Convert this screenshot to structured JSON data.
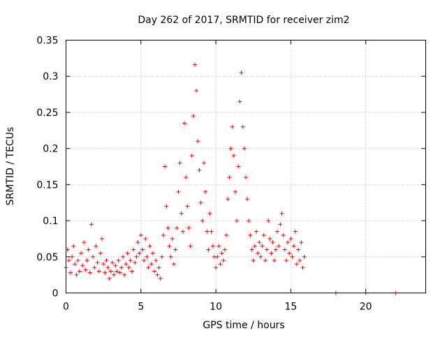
{
  "chart_data": {
    "type": "scatter",
    "title": "Day 262 of 2017, SRMTID for receiver zim2",
    "xlabel": "GPS time / hours",
    "ylabel": "SRMTID / TECUs",
    "xlim": [
      0,
      24
    ],
    "ylim": [
      0,
      0.35
    ],
    "xticks": [
      0,
      5,
      10,
      15,
      20
    ],
    "yticks": [
      0,
      0.05,
      0.1,
      0.15,
      0.2,
      0.25,
      0.3,
      0.35
    ],
    "xtick_labels": [
      "0",
      "5",
      "10",
      "15",
      "20"
    ],
    "ytick_labels": [
      "0",
      "0.05",
      "0.1",
      "0.15",
      "0.2",
      "0.25",
      "0.3",
      "0.35"
    ],
    "grid": true,
    "marker": "plus",
    "color": "#ff0000",
    "series": [
      {
        "name": "SRMTID",
        "points": [
          [
            0.0,
            0.035
          ],
          [
            0.1,
            0.06
          ],
          [
            0.2,
            0.045
          ],
          [
            0.3,
            0.028
          ],
          [
            0.4,
            0.05
          ],
          [
            0.5,
            0.065
          ],
          [
            0.6,
            0.04
          ],
          [
            0.7,
            0.025
          ],
          [
            0.8,
            0.045
          ],
          [
            0.9,
            0.03
          ],
          [
            1.0,
            0.055
          ],
          [
            1.1,
            0.038
          ],
          [
            1.2,
            0.07
          ],
          [
            1.3,
            0.032
          ],
          [
            1.4,
            0.045
          ],
          [
            1.5,
            0.06
          ],
          [
            1.6,
            0.028
          ],
          [
            1.7,
            0.095
          ],
          [
            1.8,
            0.05
          ],
          [
            1.9,
            0.035
          ],
          [
            2.0,
            0.065
          ],
          [
            2.1,
            0.042
          ],
          [
            2.2,
            0.03
          ],
          [
            2.3,
            0.055
          ],
          [
            2.4,
            0.075
          ],
          [
            2.5,
            0.04
          ],
          [
            2.6,
            0.028
          ],
          [
            2.7,
            0.045
          ],
          [
            2.8,
            0.035
          ],
          [
            2.9,
            0.02
          ],
          [
            3.0,
            0.03
          ],
          [
            3.1,
            0.042
          ],
          [
            3.2,
            0.025
          ],
          [
            3.3,
            0.038
          ],
          [
            3.4,
            0.03
          ],
          [
            3.5,
            0.045
          ],
          [
            3.6,
            0.028
          ],
          [
            3.7,
            0.035
          ],
          [
            3.8,
            0.05
          ],
          [
            3.9,
            0.025
          ],
          [
            4.0,
            0.04
          ],
          [
            4.1,
            0.055
          ],
          [
            4.2,
            0.035
          ],
          [
            4.3,
            0.045
          ],
          [
            4.4,
            0.03
          ],
          [
            4.5,
            0.06
          ],
          [
            4.6,
            0.042
          ],
          [
            4.7,
            0.05
          ],
          [
            4.8,
            0.07
          ],
          [
            4.9,
            0.055
          ],
          [
            5.0,
            0.08
          ],
          [
            5.1,
            0.06
          ],
          [
            5.2,
            0.045
          ],
          [
            5.3,
            0.075
          ],
          [
            5.4,
            0.05
          ],
          [
            5.5,
            0.035
          ],
          [
            5.6,
            0.065
          ],
          [
            5.7,
            0.04
          ],
          [
            5.8,
            0.055
          ],
          [
            5.9,
            0.03
          ],
          [
            6.0,
            0.045
          ],
          [
            6.1,
            0.025
          ],
          [
            6.2,
            0.035
          ],
          [
            6.3,
            0.02
          ],
          [
            6.4,
            0.05
          ],
          [
            6.5,
            0.08
          ],
          [
            6.6,
            0.175
          ],
          [
            6.7,
            0.12
          ],
          [
            6.8,
            0.09
          ],
          [
            6.9,
            0.065
          ],
          [
            7.0,
            0.05
          ],
          [
            7.1,
            0.075
          ],
          [
            7.2,
            0.04
          ],
          [
            7.3,
            0.06
          ],
          [
            7.4,
            0.09
          ],
          [
            7.5,
            0.14
          ],
          [
            7.6,
            0.18
          ],
          [
            7.7,
            0.11
          ],
          [
            7.8,
            0.085
          ],
          [
            7.9,
            0.235
          ],
          [
            8.0,
            0.16
          ],
          [
            8.1,
            0.12
          ],
          [
            8.2,
            0.09
          ],
          [
            8.3,
            0.065
          ],
          [
            8.4,
            0.19
          ],
          [
            8.5,
            0.245
          ],
          [
            8.6,
            0.316
          ],
          [
            8.7,
            0.28
          ],
          [
            8.8,
            0.21
          ],
          [
            8.9,
            0.17
          ],
          [
            9.0,
            0.125
          ],
          [
            9.1,
            0.1
          ],
          [
            9.2,
            0.18
          ],
          [
            9.3,
            0.14
          ],
          [
            9.4,
            0.085
          ],
          [
            9.5,
            0.06
          ],
          [
            9.6,
            0.11
          ],
          [
            9.7,
            0.085
          ],
          [
            9.8,
            0.065
          ],
          [
            9.9,
            0.05
          ],
          [
            10.0,
            0.035
          ],
          [
            10.1,
            0.05
          ],
          [
            10.2,
            0.065
          ],
          [
            10.3,
            0.04
          ],
          [
            10.4,
            0.055
          ],
          [
            10.5,
            0.045
          ],
          [
            10.6,
            0.06
          ],
          [
            10.7,
            0.08
          ],
          [
            10.8,
            0.13
          ],
          [
            10.9,
            0.16
          ],
          [
            11.0,
            0.2
          ],
          [
            11.1,
            0.23
          ],
          [
            11.2,
            0.19
          ],
          [
            11.3,
            0.14
          ],
          [
            11.4,
            0.1
          ],
          [
            11.5,
            0.175
          ],
          [
            11.6,
            0.265
          ],
          [
            11.7,
            0.305
          ],
          [
            11.8,
            0.23
          ],
          [
            11.9,
            0.2
          ],
          [
            12.0,
            0.16
          ],
          [
            12.1,
            0.13
          ],
          [
            12.2,
            0.1
          ],
          [
            12.3,
            0.08
          ],
          [
            12.4,
            0.06
          ],
          [
            12.5,
            0.045
          ],
          [
            12.6,
            0.065
          ],
          [
            12.7,
            0.085
          ],
          [
            12.8,
            0.055
          ],
          [
            12.9,
            0.07
          ],
          [
            13.0,
            0.05
          ],
          [
            13.1,
            0.065
          ],
          [
            13.2,
            0.08
          ],
          [
            13.3,
            0.045
          ],
          [
            13.4,
            0.06
          ],
          [
            13.5,
            0.1
          ],
          [
            13.6,
            0.075
          ],
          [
            13.7,
            0.055
          ],
          [
            13.8,
            0.07
          ],
          [
            13.9,
            0.045
          ],
          [
            14.0,
            0.06
          ],
          [
            14.1,
            0.085
          ],
          [
            14.2,
            0.065
          ],
          [
            14.3,
            0.095
          ],
          [
            14.4,
            0.11
          ],
          [
            14.5,
            0.08
          ],
          [
            14.6,
            0.06
          ],
          [
            14.7,
            0.045
          ],
          [
            14.8,
            0.07
          ],
          [
            14.9,
            0.055
          ],
          [
            15.0,
            0.075
          ],
          [
            15.1,
            0.05
          ],
          [
            15.2,
            0.065
          ],
          [
            15.3,
            0.085
          ],
          [
            15.4,
            0.04
          ],
          [
            15.5,
            0.06
          ],
          [
            15.6,
            0.045
          ],
          [
            15.7,
            0.07
          ],
          [
            15.8,
            0.035
          ],
          [
            15.9,
            0.05
          ],
          [
            18.0,
            0.0
          ],
          [
            20.0,
            0.0
          ],
          [
            22.0,
            0.0
          ]
        ]
      }
    ]
  }
}
